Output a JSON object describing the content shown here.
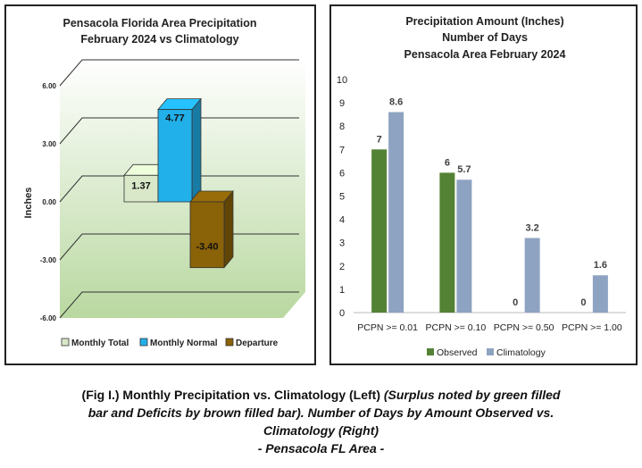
{
  "colors": {
    "monthly_total": "#d8e8c8",
    "monthly_normal": "#22b0ea",
    "departure": "#8a6208",
    "observed": "#548235",
    "climatology": "#8ea3c1"
  },
  "chart_data": [
    {
      "type": "bar",
      "title_line1": "Pensacola Florida Area Precipitation",
      "title_line2": "February 2024 vs Climatology",
      "ylabel": "Inches",
      "ylim": [
        -6,
        6
      ],
      "yticks": [
        "6.00",
        "3.00",
        "0.00",
        "-3.00",
        "-6.00"
      ],
      "series": [
        {
          "name": "Monthly Total",
          "value": 1.37,
          "label": "1.37"
        },
        {
          "name": "Monthly Normal",
          "value": 4.77,
          "label": "4.77"
        },
        {
          "name": "Departure",
          "value": -3.4,
          "label": "-3.40"
        }
      ]
    },
    {
      "type": "bar",
      "title_line1": "Precipitation Amount (Inches)",
      "title_line2": "Number of Days",
      "title_line3": "Pensacola Area February 2024",
      "ylim": [
        0,
        10
      ],
      "yticks": [
        "10",
        "9",
        "8",
        "7",
        "6",
        "5",
        "4",
        "3",
        "2",
        "1",
        "0"
      ],
      "categories": [
        "PCPN >= 0.01",
        "PCPN >= 0.10",
        "PCPN >= 0.50",
        "PCPN >= 1.00"
      ],
      "series": [
        {
          "name": "Observed",
          "values": [
            7,
            6,
            0,
            0
          ],
          "labels": [
            "7",
            "6",
            "0",
            "0"
          ]
        },
        {
          "name": "Climatology",
          "values": [
            8.6,
            5.7,
            3.2,
            1.6
          ],
          "labels": [
            "8.6",
            "5.7",
            "3.2",
            "1.6"
          ]
        }
      ]
    }
  ],
  "caption": {
    "bold1": "(Fig I.) Monthly Precipitation vs. Climatology (Left)",
    "italic1": "(Surplus noted by green filled bar and Deficits by brown filled bar). Number of Days by Amount Observed vs. Climatology (Right)",
    "italic2": "- Pensacola FL Area -"
  }
}
